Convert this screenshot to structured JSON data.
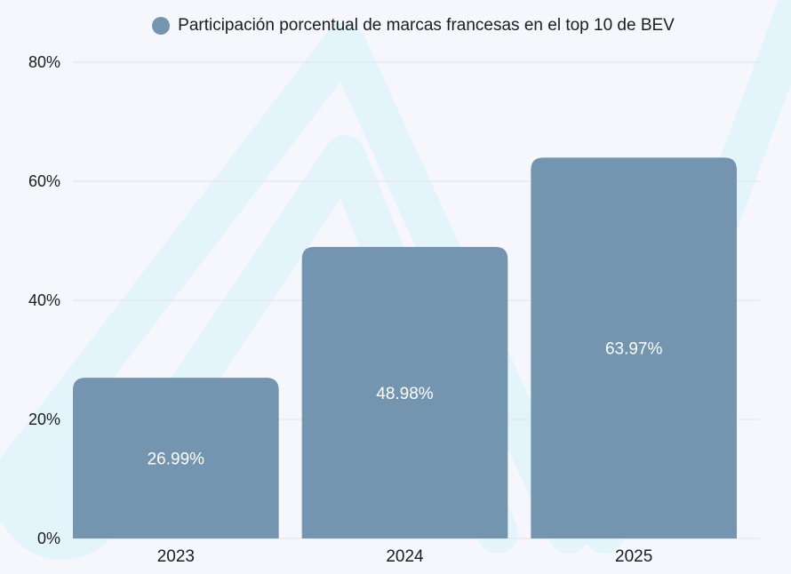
{
  "chart_data": {
    "type": "bar",
    "categories": [
      "2023",
      "2024",
      "2025"
    ],
    "series": [
      {
        "name": "Participación porcentual de marcas francesas en el top 10 de BEV",
        "values": [
          26.99,
          48.98,
          63.97
        ],
        "value_labels": [
          "26.99%",
          "48.98%",
          "63.97%"
        ],
        "color": "#7395b0"
      }
    ],
    "ylim": [
      0,
      80
    ],
    "y_ticks": [
      0,
      20,
      40,
      60,
      80
    ],
    "y_tick_labels": [
      "0%",
      "20%",
      "40%",
      "60%",
      "80%"
    ],
    "xlabel": "",
    "ylabel": "",
    "grid": true,
    "legend_position": "top-center"
  },
  "colors": {
    "background": "#f6f7fd",
    "bar": "#7395b0",
    "bar_label": "#ffffff",
    "grid": "#dfe3ea",
    "tick_text": "#1c1c1c",
    "watermark": "#e4f4fb"
  }
}
